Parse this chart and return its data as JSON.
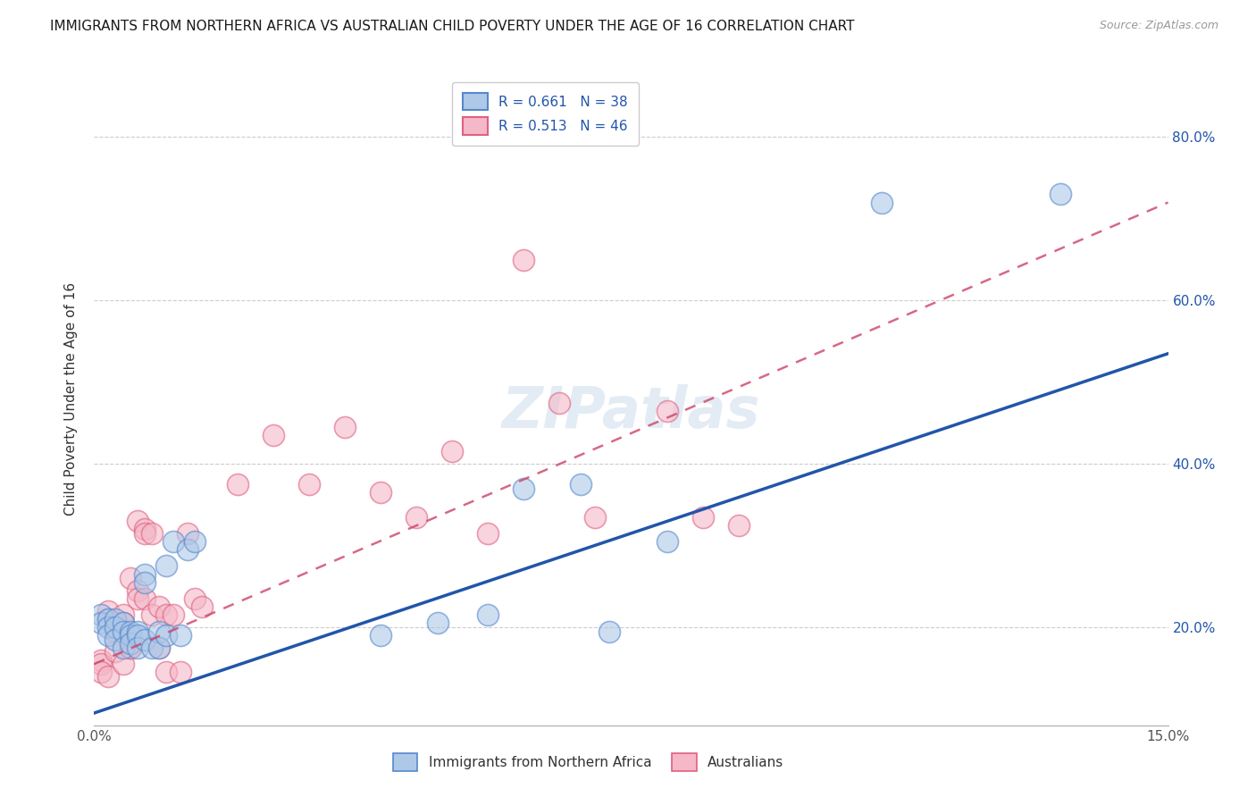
{
  "title": "IMMIGRANTS FROM NORTHERN AFRICA VS AUSTRALIAN CHILD POVERTY UNDER THE AGE OF 16 CORRELATION CHART",
  "source": "Source: ZipAtlas.com",
  "ylabel": "Child Poverty Under the Age of 16",
  "xlim": [
    0.0,
    0.15
  ],
  "ylim": [
    0.08,
    0.88
  ],
  "xticks": [
    0.0,
    0.03,
    0.06,
    0.09,
    0.12,
    0.15
  ],
  "xtick_labels": [
    "0.0%",
    "",
    "",
    "",
    "",
    "15.0%"
  ],
  "yticks": [
    0.2,
    0.4,
    0.6,
    0.8
  ],
  "right_ytick_labels": [
    "20.0%",
    "40.0%",
    "60.0%",
    "80.0%"
  ],
  "legend_label1": "R = 0.661   N = 38",
  "legend_label2": "R = 0.513   N = 46",
  "legend_bottom_label1": "Immigrants from Northern Africa",
  "legend_bottom_label2": "Australians",
  "blue_fill": "#aec8e8",
  "pink_fill": "#f4b8c8",
  "blue_edge": "#5588cc",
  "pink_edge": "#e06080",
  "blue_line_color": "#2255aa",
  "pink_line_color": "#cc4466",
  "watermark": "ZIPatlas",
  "blue_scatter_x": [
    0.001,
    0.001,
    0.002,
    0.002,
    0.002,
    0.003,
    0.003,
    0.003,
    0.004,
    0.004,
    0.004,
    0.005,
    0.005,
    0.005,
    0.006,
    0.006,
    0.006,
    0.007,
    0.007,
    0.007,
    0.008,
    0.009,
    0.009,
    0.01,
    0.01,
    0.011,
    0.012,
    0.013,
    0.014,
    0.04,
    0.048,
    0.055,
    0.06,
    0.068,
    0.072,
    0.08,
    0.11,
    0.135
  ],
  "blue_scatter_y": [
    0.215,
    0.205,
    0.21,
    0.2,
    0.19,
    0.21,
    0.2,
    0.185,
    0.205,
    0.195,
    0.175,
    0.195,
    0.19,
    0.18,
    0.195,
    0.19,
    0.175,
    0.265,
    0.255,
    0.185,
    0.175,
    0.195,
    0.175,
    0.275,
    0.19,
    0.305,
    0.19,
    0.295,
    0.305,
    0.19,
    0.205,
    0.215,
    0.37,
    0.375,
    0.195,
    0.305,
    0.72,
    0.73
  ],
  "pink_scatter_x": [
    0.001,
    0.001,
    0.001,
    0.002,
    0.002,
    0.002,
    0.003,
    0.003,
    0.003,
    0.004,
    0.004,
    0.004,
    0.005,
    0.005,
    0.005,
    0.006,
    0.006,
    0.006,
    0.007,
    0.007,
    0.007,
    0.008,
    0.008,
    0.009,
    0.009,
    0.01,
    0.01,
    0.011,
    0.012,
    0.013,
    0.014,
    0.015,
    0.02,
    0.025,
    0.03,
    0.035,
    0.04,
    0.045,
    0.05,
    0.055,
    0.06,
    0.065,
    0.07,
    0.08,
    0.085,
    0.09
  ],
  "pink_scatter_y": [
    0.16,
    0.155,
    0.145,
    0.22,
    0.21,
    0.14,
    0.205,
    0.195,
    0.17,
    0.215,
    0.205,
    0.155,
    0.175,
    0.175,
    0.26,
    0.245,
    0.235,
    0.33,
    0.32,
    0.315,
    0.235,
    0.315,
    0.215,
    0.225,
    0.175,
    0.215,
    0.145,
    0.215,
    0.145,
    0.315,
    0.235,
    0.225,
    0.375,
    0.435,
    0.375,
    0.445,
    0.365,
    0.335,
    0.415,
    0.315,
    0.65,
    0.475,
    0.335,
    0.465,
    0.335,
    0.325
  ],
  "blue_line_x": [
    0.0,
    0.15
  ],
  "blue_line_y": [
    0.095,
    0.535
  ],
  "pink_line_x": [
    0.0,
    0.15
  ],
  "pink_line_y": [
    0.155,
    0.72
  ],
  "grid_color": "#cccccc",
  "right_label_color": "#2255aa"
}
